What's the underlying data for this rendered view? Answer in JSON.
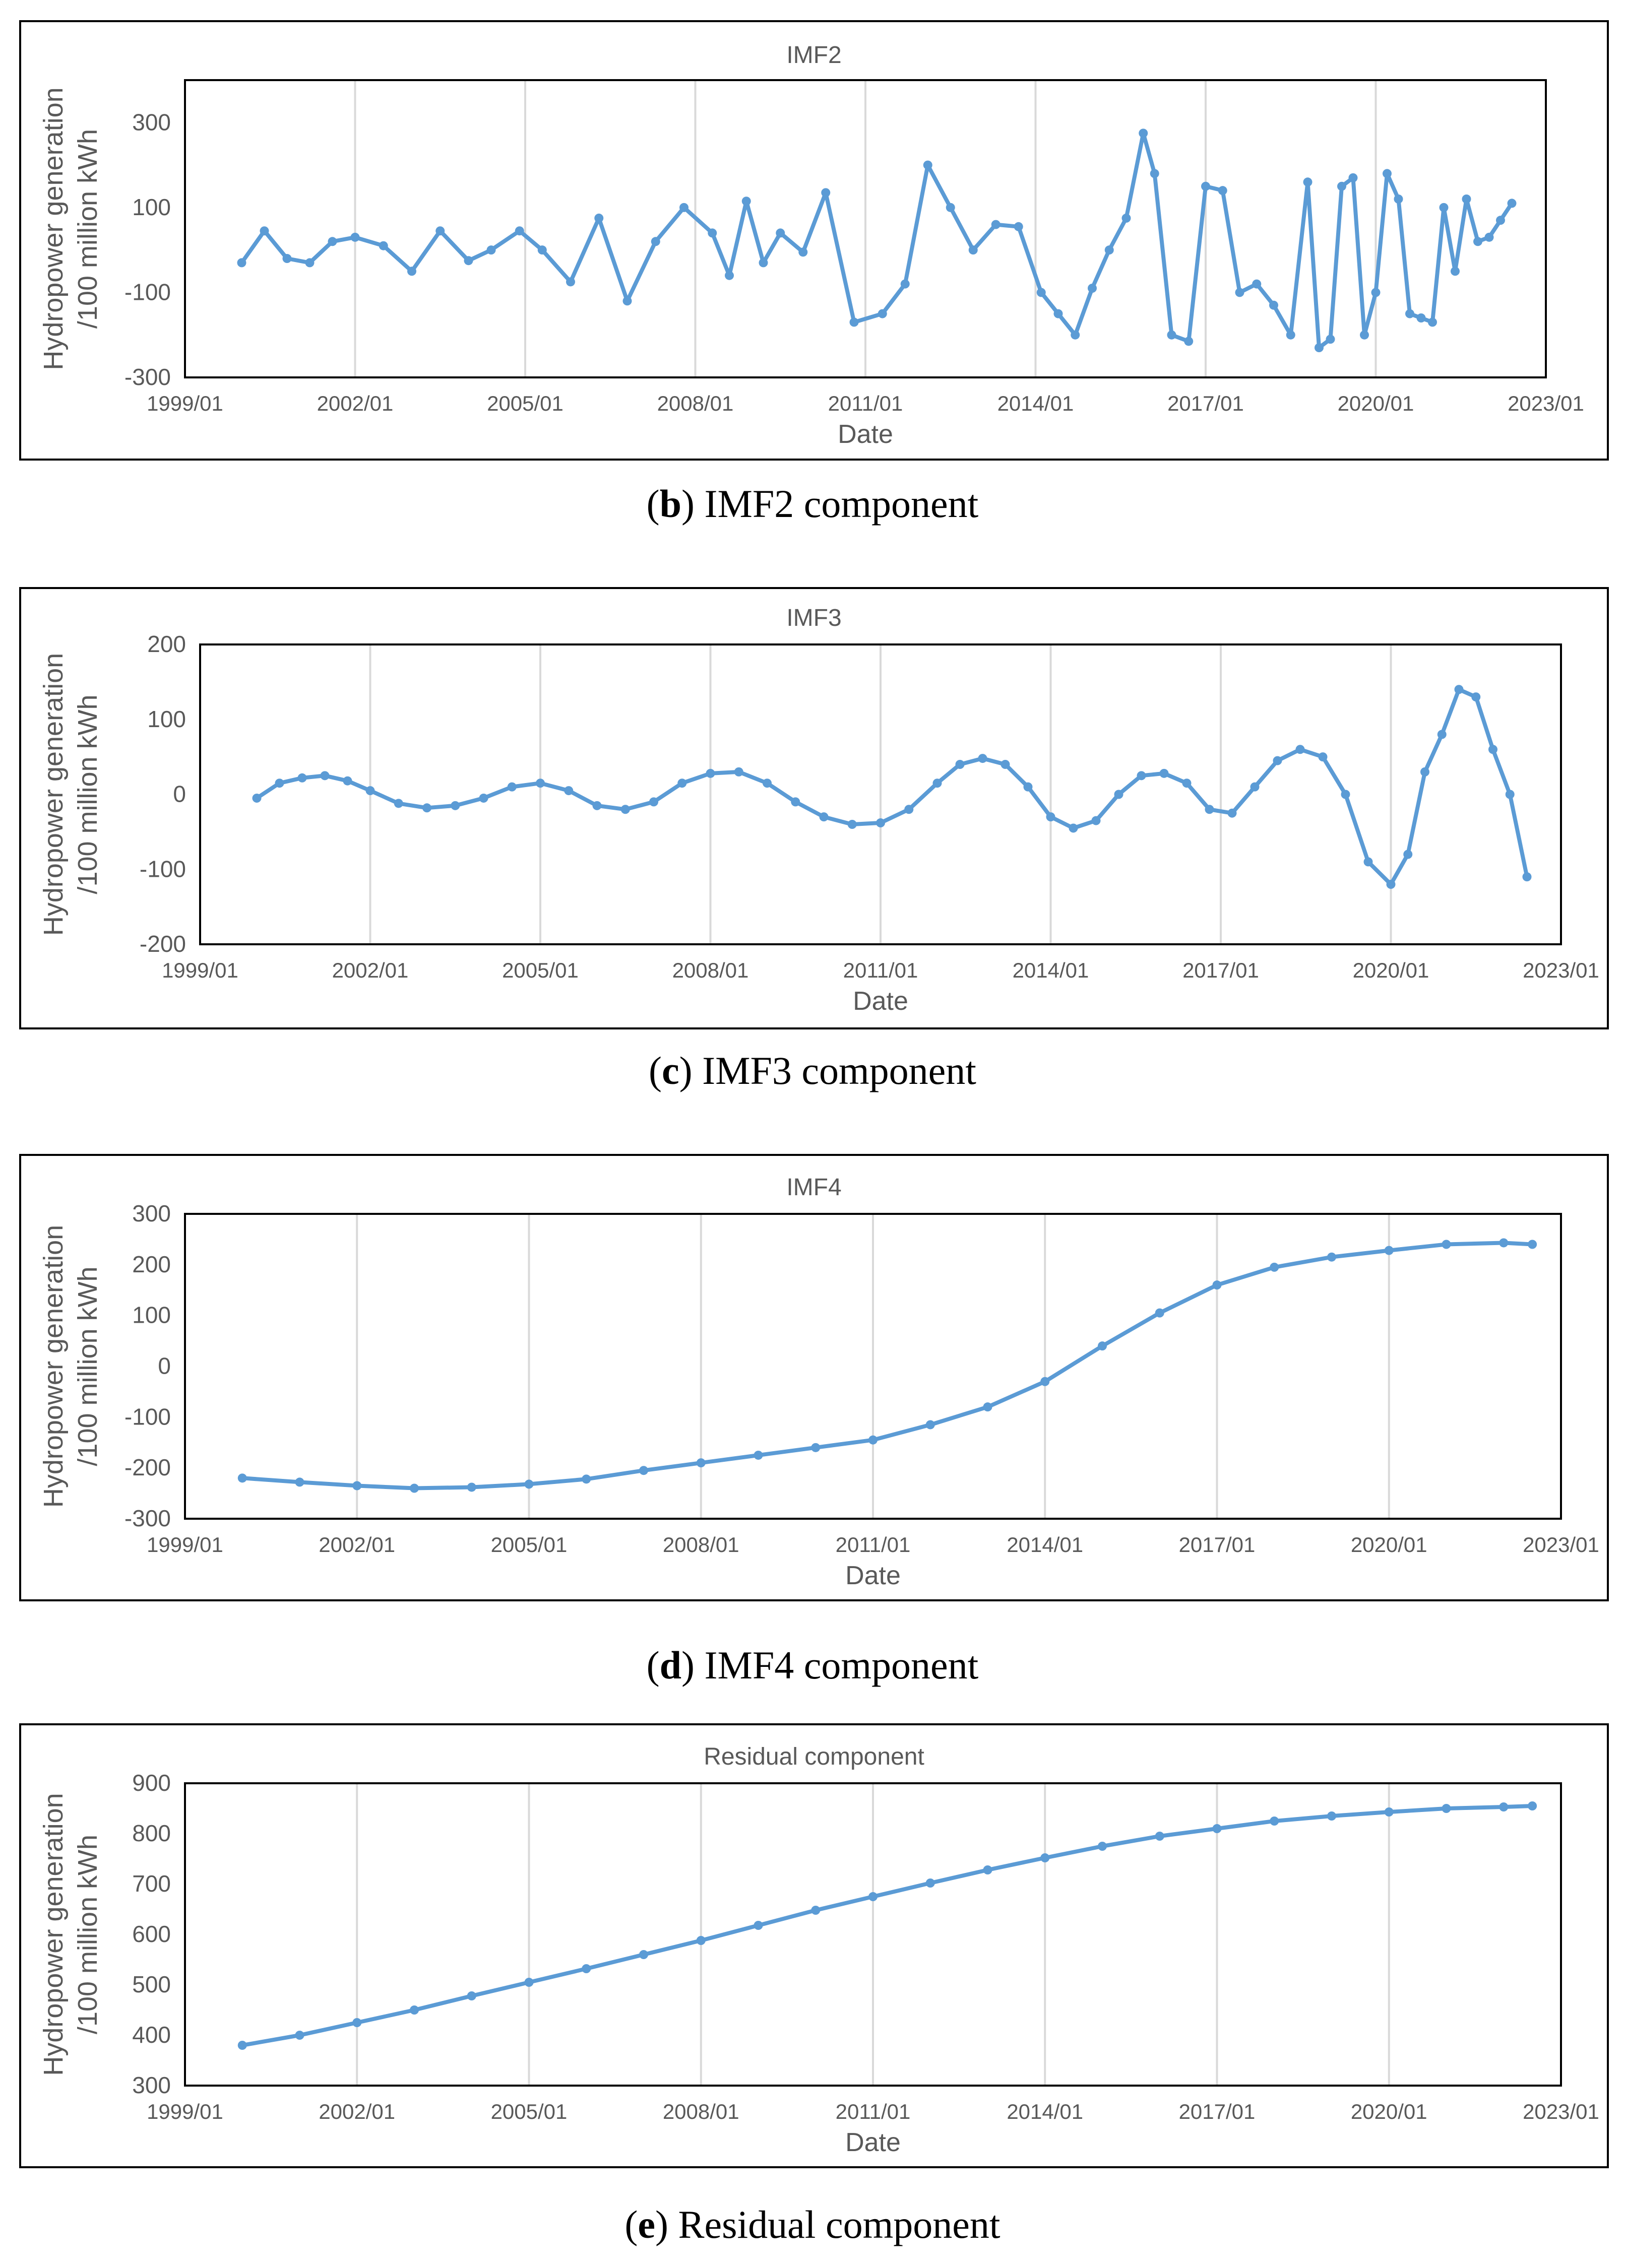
{
  "line_color": "#5b9bd5",
  "chart_data": [
    {
      "id": "imf2",
      "type": "line",
      "title": "IMF2",
      "xlabel": "Date",
      "ylabel_line1": "Hydropower generation",
      "ylabel_line2": "/100 million kWh",
      "ylim": [
        -300,
        400
      ],
      "yticks": [
        -300,
        -100,
        100,
        300
      ],
      "xlim": [
        1999.0,
        2023.0
      ],
      "xticks": [
        "1999/01",
        "2002/01",
        "2005/01",
        "2008/01",
        "2011/01",
        "2014/01",
        "2017/01",
        "2020/01",
        "2023/01"
      ],
      "caption_letter": "b",
      "caption_text": "IMF2 component",
      "x": [
        2000.0,
        2000.4,
        2000.8,
        2001.2,
        2001.6,
        2002.0,
        2002.5,
        2003.0,
        2003.5,
        2004.0,
        2004.4,
        2004.9,
        2005.3,
        2005.8,
        2006.3,
        2006.8,
        2007.3,
        2007.8,
        2008.3,
        2008.6,
        2008.9,
        2009.2,
        2009.5,
        2009.9,
        2010.3,
        2010.8,
        2011.3,
        2011.7,
        2012.1,
        2012.5,
        2012.9,
        2013.3,
        2013.7,
        2014.1,
        2014.4,
        2014.7,
        2015.0,
        2015.3,
        2015.6,
        2015.9,
        2016.1,
        2016.4,
        2016.7,
        2017.0,
        2017.3,
        2017.6,
        2017.9,
        2018.2,
        2018.5,
        2018.8,
        2019.0,
        2019.2,
        2019.4,
        2019.6,
        2019.8,
        2020.0,
        2020.2,
        2020.4,
        2020.6,
        2020.8,
        2021.0,
        2021.2,
        2021.4,
        2021.6,
        2021.8,
        2022.0,
        2022.2,
        2022.4
      ],
      "values": [
        -30,
        45,
        -20,
        -30,
        20,
        30,
        10,
        -50,
        45,
        -25,
        0,
        45,
        0,
        -75,
        75,
        -120,
        20,
        100,
        40,
        -60,
        115,
        -30,
        40,
        -5,
        135,
        -170,
        -150,
        -80,
        200,
        100,
        0,
        60,
        55,
        -100,
        -150,
        -200,
        -90,
        0,
        75,
        275,
        180,
        -200,
        -215,
        150,
        140,
        -100,
        -80,
        -130,
        -200,
        160,
        -230,
        -210,
        150,
        170,
        -200,
        -100,
        180,
        120,
        -150,
        -160,
        -170,
        100,
        -50,
        120,
        20,
        30,
        70,
        110
      ]
    },
    {
      "id": "imf3",
      "type": "line",
      "title": "IMF3",
      "xlabel": "Date",
      "ylabel_line1": "Hydropower generation",
      "ylabel_line2": "/100 million kWh",
      "ylim": [
        -200,
        200
      ],
      "yticks": [
        -200,
        -100,
        0,
        100,
        200
      ],
      "xlim": [
        1999.0,
        2023.0
      ],
      "xticks": [
        "1999/01",
        "2002/01",
        "2005/01",
        "2008/01",
        "2011/01",
        "2014/01",
        "2017/01",
        "2020/01",
        "2023/01"
      ],
      "caption_letter": "c",
      "caption_text": "IMF3 component",
      "x": [
        2000.0,
        2000.4,
        2000.8,
        2001.2,
        2001.6,
        2002.0,
        2002.5,
        2003.0,
        2003.5,
        2004.0,
        2004.5,
        2005.0,
        2005.5,
        2006.0,
        2006.5,
        2007.0,
        2007.5,
        2008.0,
        2008.5,
        2009.0,
        2009.5,
        2010.0,
        2010.5,
        2011.0,
        2011.5,
        2012.0,
        2012.4,
        2012.8,
        2013.2,
        2013.6,
        2014.0,
        2014.4,
        2014.8,
        2015.2,
        2015.6,
        2016.0,
        2016.4,
        2016.8,
        2017.2,
        2017.6,
        2018.0,
        2018.4,
        2018.8,
        2019.2,
        2019.6,
        2020.0,
        2020.3,
        2020.6,
        2020.9,
        2021.2,
        2021.5,
        2021.8,
        2022.1,
        2022.4
      ],
      "values": [
        -5,
        15,
        22,
        25,
        18,
        5,
        -12,
        -18,
        -15,
        -5,
        10,
        15,
        5,
        -15,
        -20,
        -10,
        15,
        28,
        30,
        15,
        -10,
        -30,
        -40,
        -38,
        -20,
        15,
        40,
        48,
        40,
        10,
        -30,
        -45,
        -35,
        0,
        25,
        28,
        15,
        -20,
        -25,
        10,
        45,
        60,
        50,
        0,
        -90,
        -120,
        -80,
        30,
        80,
        140,
        130,
        60,
        0,
        -110
      ]
    },
    {
      "id": "imf4",
      "type": "line",
      "title": "IMF4",
      "xlabel": "Date",
      "ylabel_line1": "Hydropower generation",
      "ylabel_line2": "/100 million kWh",
      "ylim": [
        -300,
        300
      ],
      "yticks": [
        -300,
        -200,
        -100,
        0,
        100,
        200,
        300
      ],
      "xlim": [
        1999.0,
        2023.0
      ],
      "xticks": [
        "1999/01",
        "2002/01",
        "2005/01",
        "2008/01",
        "2011/01",
        "2014/01",
        "2017/01",
        "2020/01",
        "2023/01"
      ],
      "caption_letter": "d",
      "caption_text": "IMF4 component",
      "x": [
        2000.0,
        2001.0,
        2002.0,
        2003.0,
        2004.0,
        2005.0,
        2006.0,
        2007.0,
        2008.0,
        2009.0,
        2010.0,
        2011.0,
        2012.0,
        2013.0,
        2014.0,
        2015.0,
        2016.0,
        2017.0,
        2018.0,
        2019.0,
        2020.0,
        2021.0,
        2022.0,
        2022.5
      ],
      "values": [
        -220,
        -228,
        -235,
        -240,
        -238,
        -232,
        -222,
        -205,
        -190,
        -175,
        -160,
        -145,
        -115,
        -80,
        -30,
        40,
        105,
        160,
        195,
        215,
        228,
        240,
        243,
        240
      ]
    },
    {
      "id": "residual",
      "type": "line",
      "title": "Residual component",
      "xlabel": "Date",
      "ylabel_line1": "Hydropower generation",
      "ylabel_line2": "/100 million kWh",
      "ylim": [
        300,
        900
      ],
      "yticks": [
        300,
        400,
        500,
        600,
        700,
        800,
        900
      ],
      "xlim": [
        1999.0,
        2023.0
      ],
      "xticks": [
        "1999/01",
        "2002/01",
        "2005/01",
        "2008/01",
        "2011/01",
        "2014/01",
        "2017/01",
        "2020/01",
        "2023/01"
      ],
      "caption_letter": "e",
      "caption_text": "Residual component",
      "x": [
        2000.0,
        2001.0,
        2002.0,
        2003.0,
        2004.0,
        2005.0,
        2006.0,
        2007.0,
        2008.0,
        2009.0,
        2010.0,
        2011.0,
        2012.0,
        2013.0,
        2014.0,
        2015.0,
        2016.0,
        2017.0,
        2018.0,
        2019.0,
        2020.0,
        2021.0,
        2022.0,
        2022.5
      ],
      "values": [
        380,
        400,
        425,
        450,
        478,
        505,
        532,
        560,
        588,
        618,
        648,
        675,
        702,
        728,
        752,
        775,
        795,
        810,
        825,
        835,
        843,
        850,
        853,
        855
      ]
    }
  ]
}
